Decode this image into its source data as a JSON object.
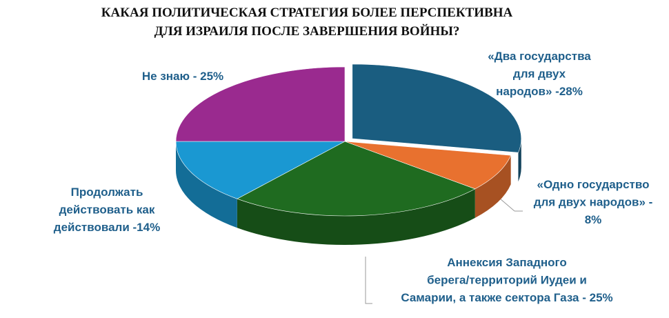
{
  "chart_data": {
    "type": "pie",
    "title": [
      "КАКАЯ ПОЛИТИЧЕСКАЯ СТРАТЕГИЯ БОЛЕЕ ПЕРСПЕКТИВНА",
      "ДЛЯ ИЗРАИЛЯ ПОСЛЕ ЗАВЕРШЕНИЯ ВОЙНЫ?"
    ],
    "values": [
      28,
      8,
      25,
      14,
      25
    ],
    "value_labels": [
      [
        "«Два государства",
        "для двух",
        "народов» -28%"
      ],
      [
        "«Одно государство",
        "для двух народов» -",
        "8%"
      ],
      [
        "Аннексия Западного",
        "берега/территорий Иудеи и",
        "Самарии, а также сектора Газа - 25%"
      ],
      [
        "Продолжать",
        "действовать как",
        "действовали -14%"
      ],
      [
        "Не знаю - 25%"
      ]
    ],
    "colors": [
      "#1a5d80",
      "#e8712f",
      "#1f6b20",
      "#1a98d2",
      "#9a2a8f"
    ]
  }
}
